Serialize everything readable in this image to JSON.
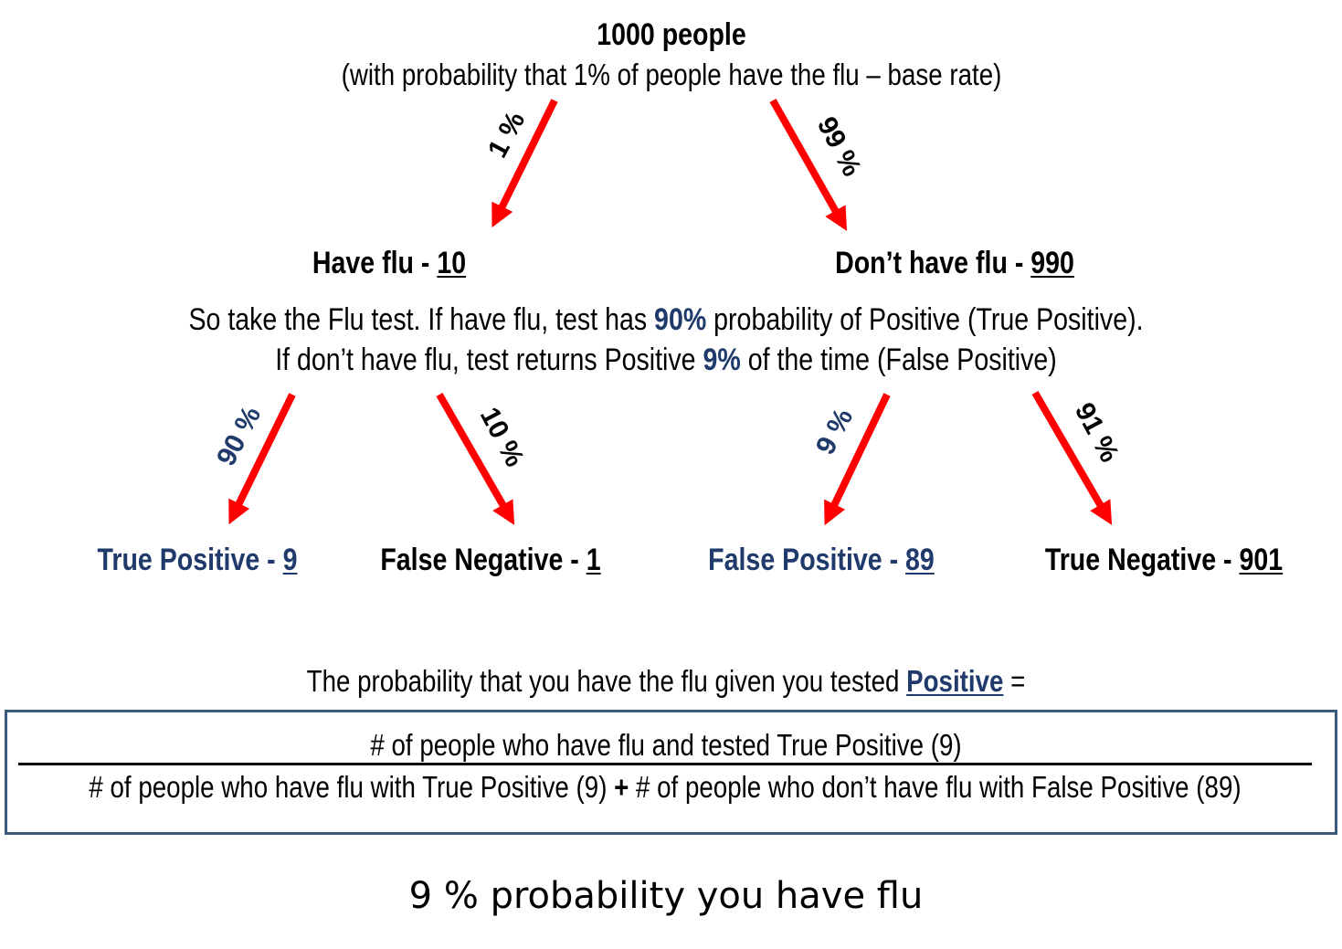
{
  "root": {
    "count_label": "1000 people",
    "base_rate_note": "(with probability that 1% of people have the flu – base rate)"
  },
  "branches_level1": {
    "left_pct": "1 %",
    "right_pct": "99 %"
  },
  "level1": {
    "have_flu_label": "Have flu - ",
    "have_flu_count": "10",
    "no_flu_label": "Don’t have flu - ",
    "no_flu_count": "990"
  },
  "test_description": {
    "line1_part1": "So take the Flu test.  If have flu, test has ",
    "line1_highlight": "90%",
    "line1_part2": " probability of Positive (True Positive).",
    "line2_part1": "If don’t have flu, test returns Positive ",
    "line2_highlight": "9%",
    "line2_part2": " of the time (False Positive)"
  },
  "branches_level2": {
    "tp_pct": "90 %",
    "fn_pct": "10 %",
    "fp_pct": "9 %",
    "tn_pct": "91 %"
  },
  "level2": {
    "tp_label": "True Positive  - ",
    "tp_count": "9",
    "fn_label": "False Negative - ",
    "fn_count": "1",
    "fp_label": "False Positive  - ",
    "fp_count": "89",
    "tn_label": "True Negative - ",
    "tn_count": "901"
  },
  "question": {
    "prefix": "The probability that you have the flu given you tested ",
    "keyword": "Positive",
    "suffix": " ="
  },
  "formula": {
    "numerator": "# of people who have flu and tested True Positive (9)",
    "denominator_part1": "# of people who have flu with True Positive (9) ",
    "plus_sign": "+",
    "denominator_part2": "  # of people who don’t have flu with False Positive (89)"
  },
  "result": "9 % probability you have flu",
  "colors": {
    "arrow": "#ff0000",
    "highlight": "#1f3a6b",
    "box_border": "#3a5a7c"
  }
}
